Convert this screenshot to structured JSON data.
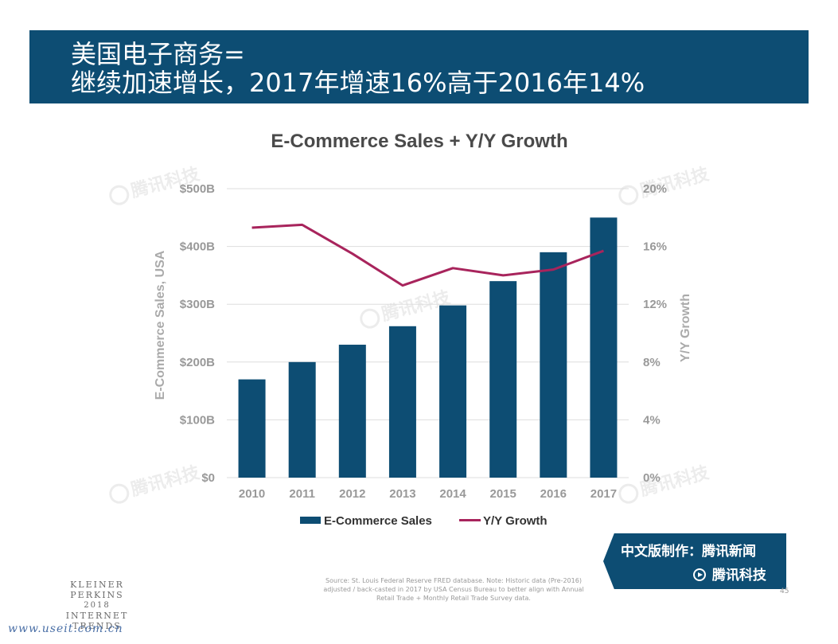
{
  "header": {
    "title_line1": "美国电子商务=",
    "title_line2": "继续加速增长，2017年增速16%高于2016年14%"
  },
  "chart_data": {
    "type": "bar",
    "title": "E-Commerce Sales + Y/Y Growth",
    "categories": [
      "2010",
      "2011",
      "2012",
      "2013",
      "2014",
      "2015",
      "2016",
      "2017"
    ],
    "series": [
      {
        "name": "E-Commerce Sales",
        "type": "bar",
        "axis": "left",
        "color": "#0d4d73",
        "values": [
          170,
          200,
          230,
          262,
          298,
          340,
          390,
          450
        ]
      },
      {
        "name": "Y/Y Growth",
        "type": "line",
        "axis": "right",
        "color": "#a8245c",
        "values": [
          17.3,
          17.5,
          15.5,
          13.3,
          14.5,
          14.0,
          14.4,
          15.7
        ]
      }
    ],
    "ylabel": "E-Commerce Sales, USA",
    "y2label": "Y/Y Growth",
    "ylim": [
      0,
      500
    ],
    "y2lim": [
      0,
      20
    ],
    "y_ticks": [
      0,
      100,
      200,
      300,
      400,
      500
    ],
    "y_tick_labels": [
      "$0",
      "$100B",
      "$200B",
      "$300B",
      "$400B",
      "$500B"
    ],
    "y2_ticks": [
      0,
      4,
      8,
      12,
      16,
      20
    ],
    "y2_tick_labels": [
      "0%",
      "4%",
      "8%",
      "12%",
      "16%",
      "20%"
    ],
    "grid": true,
    "legend_position": "bottom-center"
  },
  "watermark_text": "腾讯科技",
  "badge": {
    "line1": "中文版制作：腾讯新闻",
    "line2": "腾讯科技"
  },
  "footer": {
    "brand_line1": "KLEINER PERKINS",
    "brand_line2": "2018",
    "brand_line3": "INTERNET TRENDS",
    "source": "Source: St. Louis Federal Reserve FRED database. Note: Historic data (Pre-2016) adjusted / back-casted in 2017 by USA Census Bureau to better align with Annual Retail Trade + Monthly Retail Trade Survey data.",
    "page_number": "45",
    "site": "www.useit.com.cn"
  },
  "colors": {
    "brand_blue": "#0d4d73",
    "growth_line": "#a8245c",
    "grid": "#dddddd",
    "axis_text": "#999999"
  }
}
